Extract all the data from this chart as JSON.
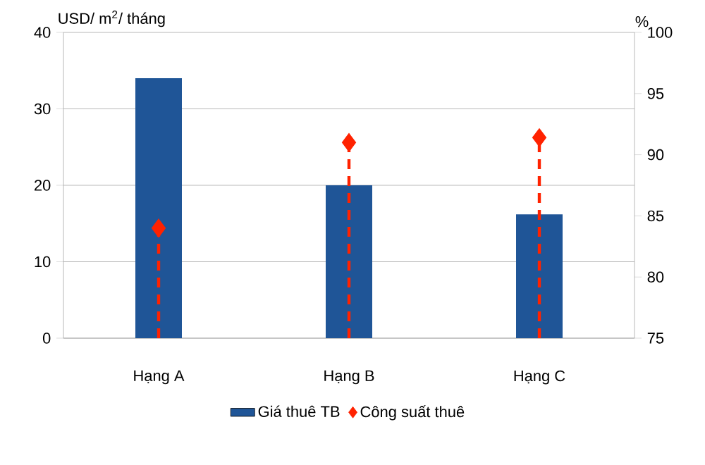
{
  "chart_data": {
    "type": "bar",
    "ylabel": "USD/ m$^{2}$/ tháng",
    "y2label": "%",
    "categories": [
      "Hạng A",
      "Hạng B",
      "Hạng C"
    ],
    "series": [
      {
        "name": "Giá thuê TB",
        "color": "#1f5597",
        "values": [
          34,
          20,
          16.2
        ]
      },
      {
        "name": "Công suất thuê",
        "color": "#ff2200",
        "type": "lollipop",
        "axis": "y2",
        "marker": "diamond",
        "line_style": "dashed",
        "values": [
          84,
          91,
          91.4
        ]
      }
    ],
    "ylim": [
      0,
      40
    ],
    "yticks": [
      0,
      10,
      20,
      30,
      40
    ],
    "y2lim": [
      75,
      100
    ],
    "y2ticks": [
      75,
      80,
      85,
      90,
      95,
      100
    ],
    "grid": "y",
    "legend": "bottom"
  }
}
